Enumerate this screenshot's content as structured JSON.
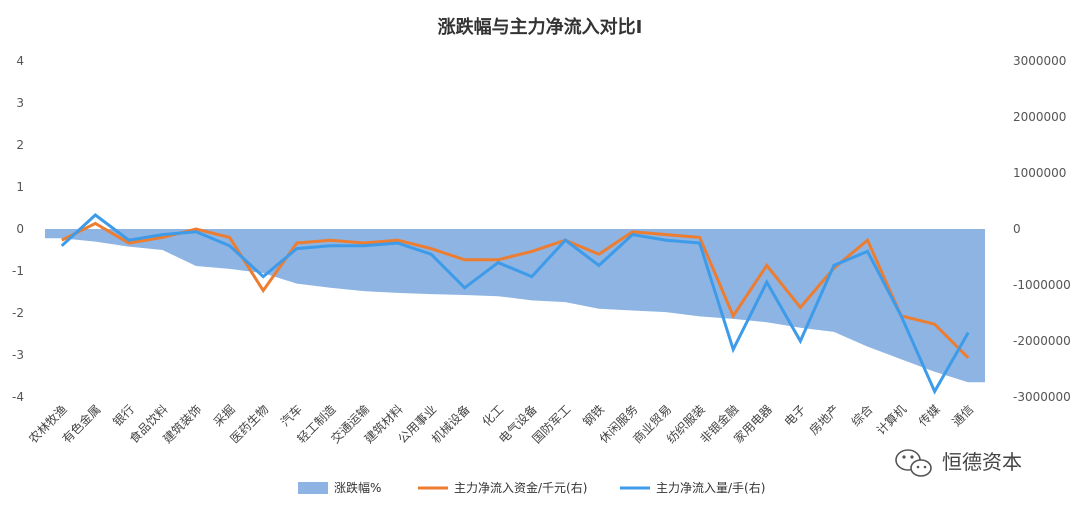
{
  "chart_data": {
    "type": "area",
    "title": "涨跌幅与主力净流入对比I",
    "categories": [
      "农林牧渔",
      "有色金属",
      "银行",
      "食品饮料",
      "建筑装饰",
      "采掘",
      "医药生物",
      "汽车",
      "轻工制造",
      "交通运输",
      "建筑材料",
      "公用事业",
      "机械设备",
      "化工",
      "电气设备",
      "国防军工",
      "钢铁",
      "休闲服务",
      "商业贸易",
      "纺织服装",
      "非银金融",
      "家用电器",
      "电子",
      "房地产",
      "综合",
      "计算机",
      "传媒",
      "通信"
    ],
    "y_left": {
      "ylim": [
        -4,
        4
      ],
      "ticks": [
        "4",
        "3",
        "2",
        "1",
        "0",
        "-1",
        "-2",
        "-3",
        "-4"
      ]
    },
    "y_right": {
      "ylim": [
        -3000000,
        3000000
      ],
      "ticks": [
        "3000000",
        "2000000",
        "1000000",
        "0",
        "-1000000",
        "-2000000",
        "-3000000"
      ]
    },
    "series": [
      {
        "name": "涨跌幅%",
        "axis": "left",
        "kind": "area",
        "color": "#8DB4E2",
        "values": [
          -0.22,
          -0.3,
          -0.42,
          -0.5,
          -0.88,
          -0.95,
          -1.05,
          -1.3,
          -1.4,
          -1.48,
          -1.52,
          -1.55,
          -1.57,
          -1.6,
          -1.7,
          -1.74,
          -1.9,
          -1.94,
          -1.98,
          -2.08,
          -2.14,
          -2.22,
          -2.35,
          -2.45,
          -2.8,
          -3.1,
          -3.4,
          -3.65
        ]
      },
      {
        "name": "主力净流入资金/千元(右)",
        "axis": "right",
        "kind": "line",
        "color": "#ED7D31",
        "values": [
          -200000,
          100000,
          -250000,
          -150000,
          0,
          -150000,
          -1100000,
          -250000,
          -200000,
          -250000,
          -200000,
          -350000,
          -550000,
          -550000,
          -400000,
          -200000,
          -450000,
          -50000,
          -100000,
          -150000,
          -1550000,
          -650000,
          -1400000,
          -700000,
          -200000,
          -1550000,
          -1700000,
          -2300000
        ]
      },
      {
        "name": "主力净流入量/手(右)",
        "axis": "right",
        "kind": "line",
        "color": "#3D9BE9",
        "values": [
          -300000,
          250000,
          -200000,
          -100000,
          -50000,
          -300000,
          -850000,
          -350000,
          -300000,
          -300000,
          -250000,
          -450000,
          -1050000,
          -600000,
          -850000,
          -200000,
          -650000,
          -100000,
          -200000,
          -250000,
          -2150000,
          -950000,
          -2000000,
          -650000,
          -400000,
          -1550000,
          -2900000,
          -1850000
        ]
      }
    ],
    "legend": "bottom",
    "grid": false
  },
  "watermark": {
    "icon": "wechat-icon",
    "text": "恒德资本"
  }
}
